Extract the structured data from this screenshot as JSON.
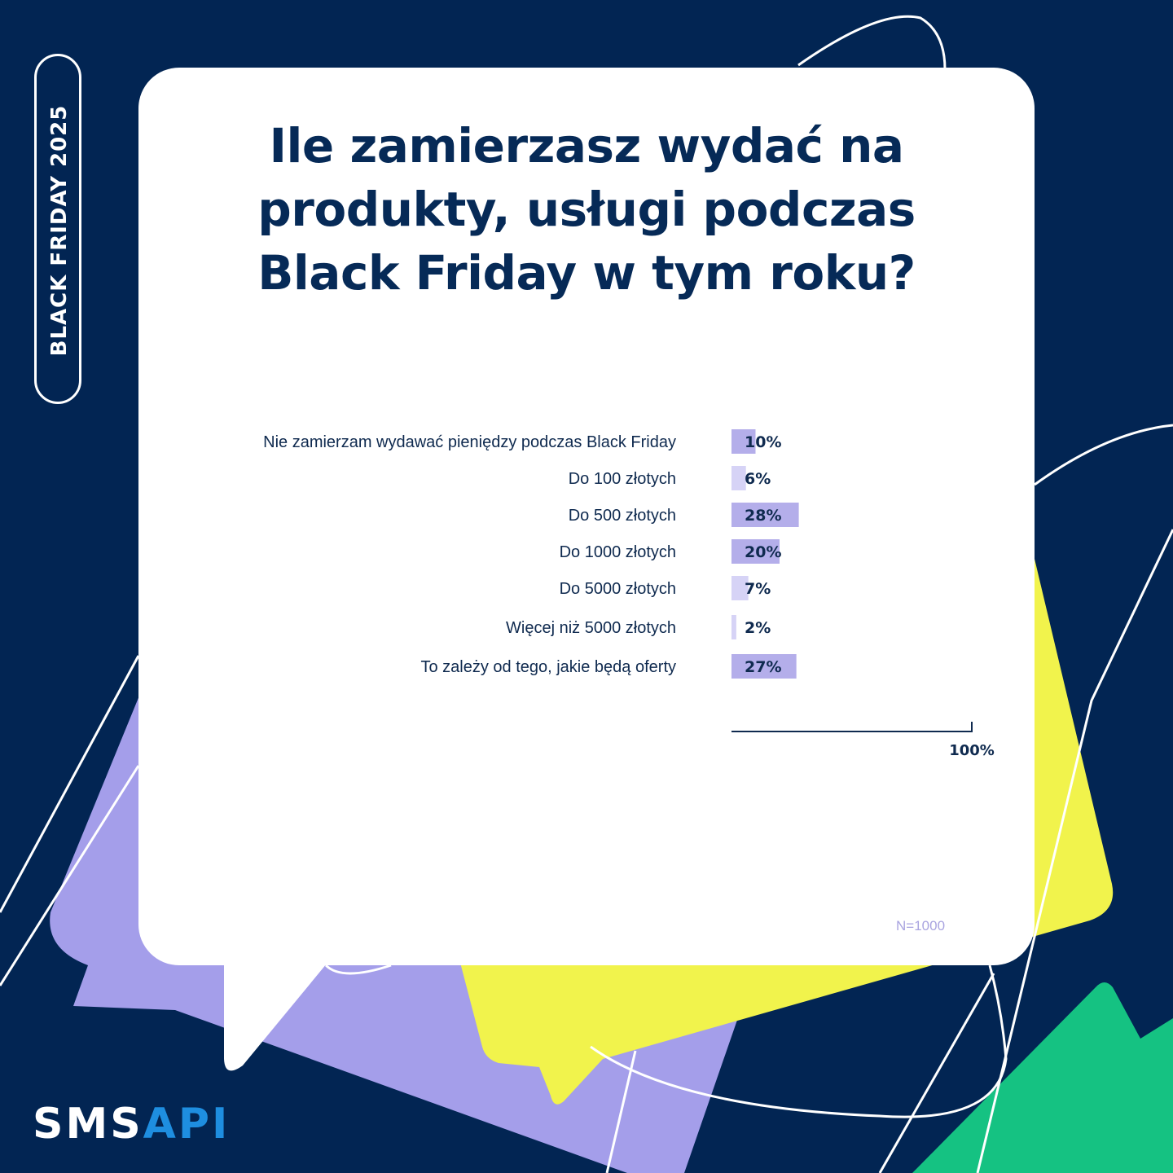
{
  "badge": {
    "text": "BLACK FRIDAY  2025"
  },
  "logo": {
    "sms": "SMS",
    "api": "API"
  },
  "sample_note": "N=1000",
  "colors": {
    "background": "#022553",
    "card": "#ffffff",
    "bar_dark": "#b4aeea",
    "bar_light": "#d6d3f6",
    "purple_shape": "#a49eea",
    "yellow_shape": "#f1f34c",
    "green_shape": "#15c282",
    "logo_accent": "#1e8ee0"
  },
  "chart_data": {
    "type": "bar",
    "orientation": "horizontal",
    "title": "Ile zamierzasz wydać na produkty, usługi podczas Black Friday w tym roku?",
    "categories": [
      "Nie zamierzam wydawać pieniędzy podczas Black Friday",
      "Do 100 złotych",
      "Do 500 złotych",
      "Do 1000 złotych",
      "Do 5000 złotych",
      "Więcej niż 5000 złotych",
      "To zależy od tego, jakie będą oferty"
    ],
    "values": [
      10,
      6,
      28,
      20,
      7,
      2,
      27
    ],
    "value_labels": [
      "10%",
      "6%",
      "28%",
      "20%",
      "7%",
      "2%",
      "27%"
    ],
    "xlim": [
      0,
      100
    ],
    "axis_end_label": "100%",
    "grid": false,
    "legend": "none"
  }
}
